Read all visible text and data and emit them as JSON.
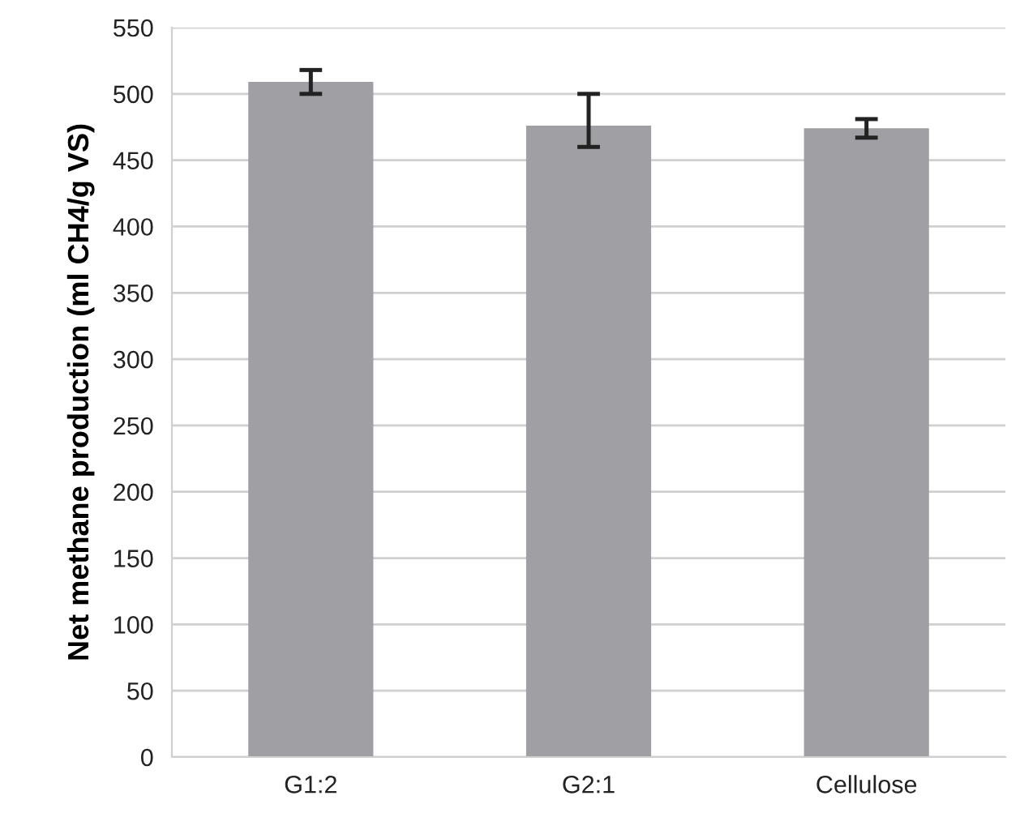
{
  "chart_data": {
    "type": "bar",
    "ylabel": "Net methane production (ml CH4/g VS)",
    "categories": [
      "G1:2",
      "G2:1",
      "Cellulose"
    ],
    "values": [
      509,
      476,
      474
    ],
    "errors": [
      [
        500,
        518
      ],
      [
        460,
        500
      ],
      [
        467,
        481
      ]
    ],
    "color": "#a0a0a4",
    "ylim": [
      0,
      550
    ],
    "yticks": [
      0,
      50,
      100,
      150,
      200,
      250,
      300,
      350,
      400,
      450,
      500,
      550
    ],
    "grid": "y",
    "legend": false
  }
}
